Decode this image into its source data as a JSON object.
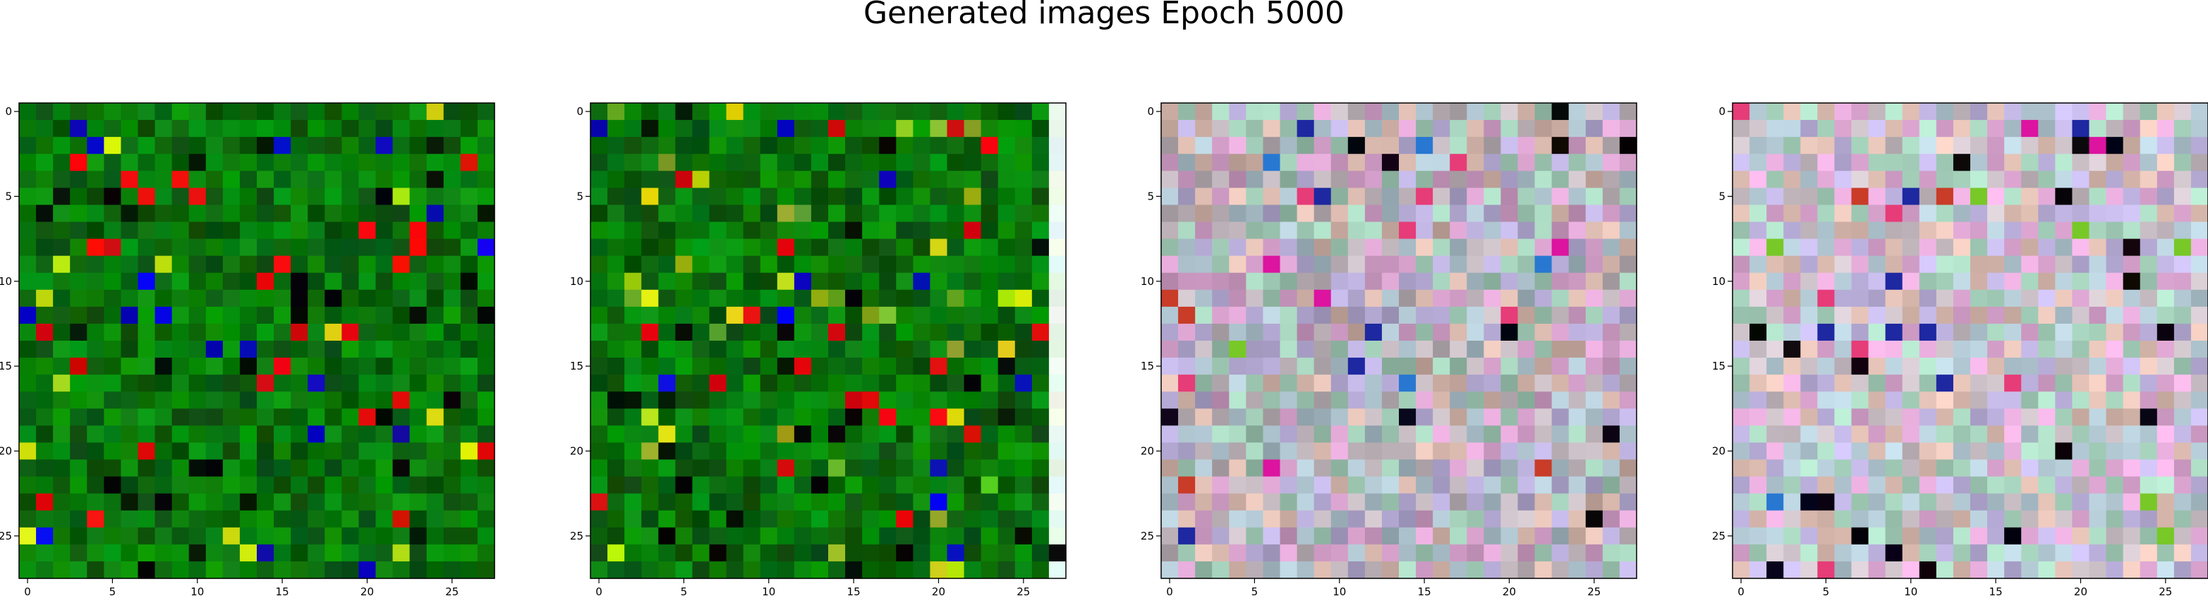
{
  "suptitle": "Generated images Epoch 5000",
  "chart_data": {
    "type": "heatmap",
    "title": "Generated images Epoch 5000",
    "image_size": 28,
    "panels": 4,
    "xticks": [
      0,
      5,
      10,
      15,
      20,
      25
    ],
    "yticks": [
      0,
      5,
      10,
      15,
      20,
      25
    ],
    "xlim": [
      -0.5,
      27.5
    ],
    "ylim": [
      27.5,
      -0.5
    ],
    "grid": false,
    "panel_palettes": [
      "green",
      "green",
      "pastel",
      "pastel"
    ],
    "panel_notes": [
      "dark/medium green noise with a few bright pixels",
      "green noise with saturated red, blue, yellow pixels; rightmost column near white",
      "pastel mauve/lilac/mint noise",
      "pastel mauve/lilac/mint noise, lighter with some saturated pixels"
    ]
  }
}
